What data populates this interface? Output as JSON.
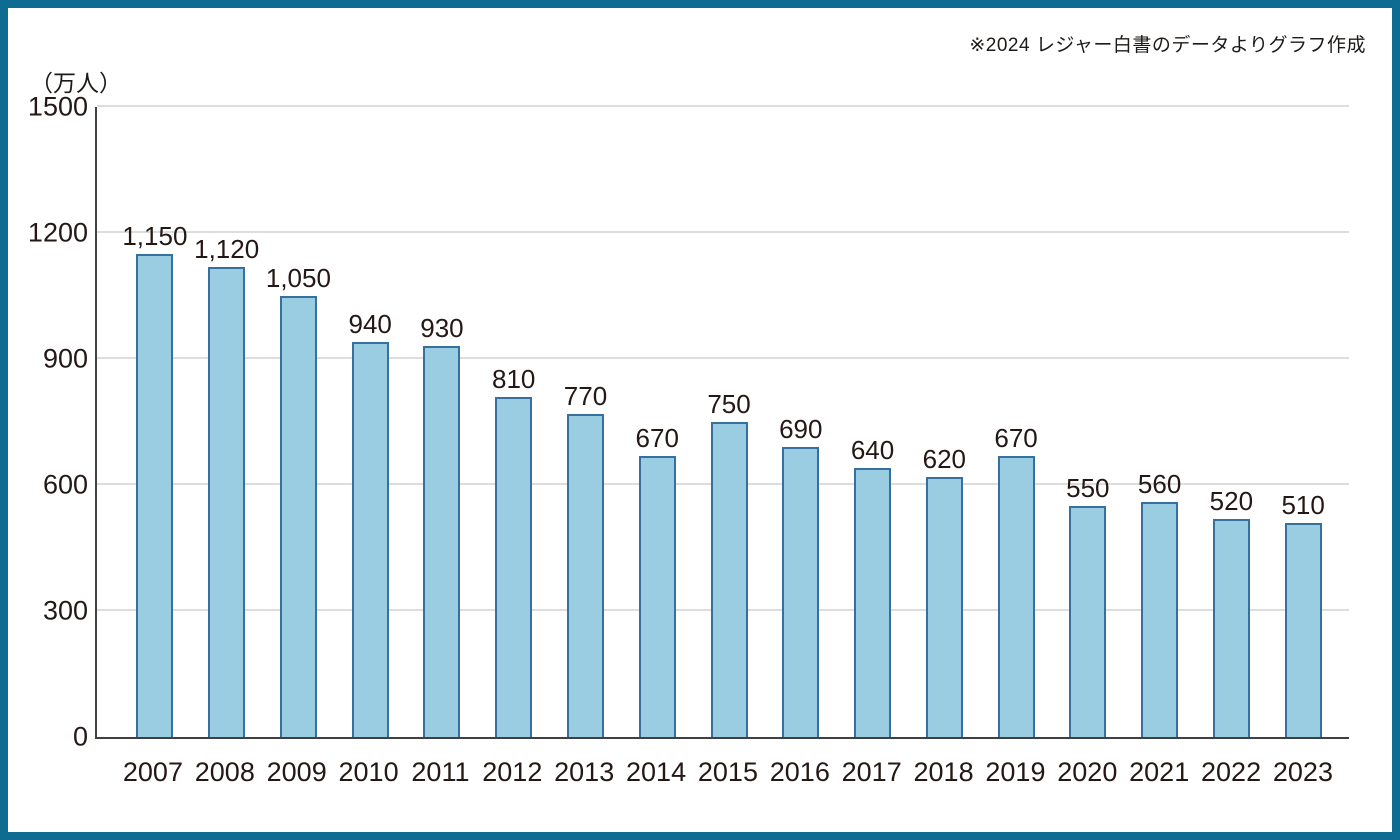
{
  "annotation": "※2024 レジャー白書のデータよりグラフ作成",
  "colors": {
    "frame_border": "#0e6b91",
    "bar_fill": "#9bcde2",
    "bar_border": "#36709f",
    "gridline": "#dddddd",
    "axis": "#404040",
    "text": "#231815"
  },
  "chart_data": {
    "type": "bar",
    "title": "",
    "xlabel": "",
    "ylabel": "（万人）",
    "categories": [
      "2007",
      "2008",
      "2009",
      "2010",
      "2011",
      "2012",
      "2013",
      "2014",
      "2015",
      "2016",
      "2017",
      "2018",
      "2019",
      "2020",
      "2021",
      "2022",
      "2023"
    ],
    "values": [
      1150,
      1120,
      1050,
      940,
      930,
      810,
      770,
      670,
      750,
      690,
      640,
      620,
      670,
      550,
      560,
      520,
      510
    ],
    "value_labels": [
      "1,150",
      "1,120",
      "1,050",
      "940",
      "930",
      "810",
      "770",
      "670",
      "750",
      "690",
      "640",
      "620",
      "670",
      "550",
      "560",
      "520",
      "510"
    ],
    "ylim": [
      0,
      1500
    ],
    "yticks": [
      0,
      300,
      600,
      900,
      1200,
      1500
    ],
    "grid": true,
    "legend": false
  }
}
